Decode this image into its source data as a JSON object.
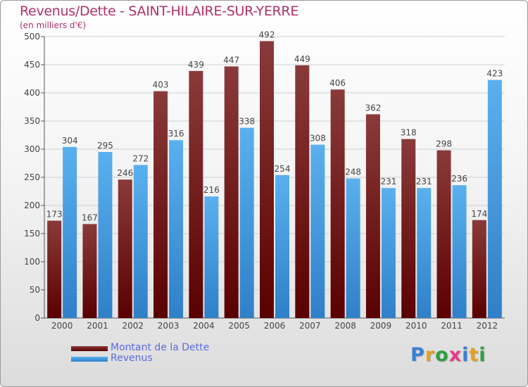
{
  "header": {
    "title": "Revenus/Dette - SAINT-HILAIRE-SUR-YERRE",
    "subtitle": "(en milliers d'€)"
  },
  "colors": {
    "title": "#b0306a",
    "dette_top": "#8a3a3a",
    "dette_bottom": "#5a0000",
    "revenus_top": "#5ab0ee",
    "revenus_bottom": "#2f80c8",
    "grid": "#cfcfcf",
    "legend_text": "#5a6be0"
  },
  "chart_data": {
    "type": "bar",
    "title": "Revenus/Dette - SAINT-HILAIRE-SUR-YERRE",
    "subtitle": "(en milliers d'€)",
    "categories": [
      "2000",
      "2001",
      "2002",
      "2003",
      "2004",
      "2005",
      "2006",
      "2007",
      "2008",
      "2009",
      "2010",
      "2011",
      "2012"
    ],
    "series": [
      {
        "name": "Montant de la Dette",
        "values": [
          173,
          167,
          246,
          403,
          439,
          447,
          492,
          449,
          406,
          362,
          318,
          298,
          174
        ]
      },
      {
        "name": "Revenus",
        "values": [
          304,
          295,
          272,
          316,
          216,
          338,
          254,
          308,
          248,
          231,
          231,
          236,
          423
        ]
      }
    ],
    "ylim": [
      0,
      500
    ],
    "yticks": [
      0,
      50,
      100,
      150,
      200,
      250,
      300,
      350,
      400,
      450,
      500
    ],
    "grid": true,
    "legend_position": "bottom-left"
  },
  "logo": {
    "letters": [
      "P",
      "r",
      "o",
      "x",
      "i",
      "t",
      "i"
    ],
    "colors": [
      "#3a7fd5",
      "#e8a020",
      "#2ea040",
      "#e83a8a",
      "#3a7fd5",
      "#e8a020",
      "#2ea040"
    ]
  }
}
